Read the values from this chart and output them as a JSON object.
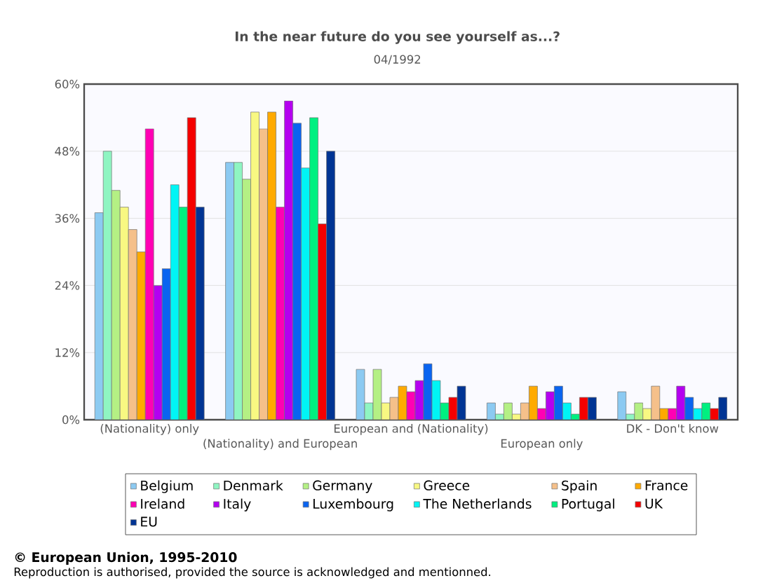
{
  "chart_data": {
    "type": "bar",
    "title": "In the near future do you see yourself as...?",
    "subtitle": "04/1992",
    "categories": [
      "(Nationality) only",
      "(Nationality) and European",
      "European and (Nationality)",
      "European only",
      "DK - Don't know"
    ],
    "series": [
      {
        "name": "Belgium",
        "color": "#8ccaf2",
        "values": [
          37,
          46,
          9,
          3,
          5
        ]
      },
      {
        "name": "Denmark",
        "color": "#8ff5c2",
        "values": [
          48,
          46,
          3,
          1,
          1
        ]
      },
      {
        "name": "Germany",
        "color": "#b4f084",
        "values": [
          41,
          43,
          9,
          3,
          3
        ]
      },
      {
        "name": "Greece",
        "color": "#f8f882",
        "values": [
          38,
          55,
          3,
          1,
          2
        ]
      },
      {
        "name": "Spain",
        "color": "#f5c08a",
        "values": [
          34,
          52,
          4,
          3,
          6
        ]
      },
      {
        "name": "France",
        "color": "#ffaa00",
        "values": [
          30,
          55,
          6,
          6,
          2
        ]
      },
      {
        "name": "Ireland",
        "color": "#ff00b4",
        "values": [
          52,
          38,
          5,
          2,
          2
        ]
      },
      {
        "name": "Italy",
        "color": "#b400f0",
        "values": [
          24,
          57,
          7,
          5,
          6
        ]
      },
      {
        "name": "Luxembourg",
        "color": "#0a64f0",
        "values": [
          27,
          53,
          10,
          6,
          4
        ]
      },
      {
        "name": "The Netherlands",
        "color": "#00f5f5",
        "values": [
          42,
          45,
          7,
          3,
          2
        ]
      },
      {
        "name": "Portugal",
        "color": "#00f080",
        "values": [
          38,
          54,
          3,
          1,
          3
        ]
      },
      {
        "name": "UK",
        "color": "#f50000",
        "values": [
          54,
          35,
          4,
          4,
          2
        ]
      },
      {
        "name": "EU",
        "color": "#003494",
        "values": [
          38,
          48,
          6,
          4,
          4
        ]
      }
    ],
    "ylim": [
      0,
      60
    ],
    "yticks": [
      {
        "value": 0,
        "label": "0%"
      },
      {
        "value": 12,
        "label": "12%"
      },
      {
        "value": 24,
        "label": "24%"
      },
      {
        "value": 36,
        "label": "36%"
      },
      {
        "value": 48,
        "label": "48%"
      },
      {
        "value": 60,
        "label": "60%"
      }
    ],
    "grid": "y",
    "legend": "bottom",
    "annotations": [
      "© European Union, 1995-2010",
      "Reproduction is authorised, provided the source is acknowledged and mentionned."
    ]
  }
}
